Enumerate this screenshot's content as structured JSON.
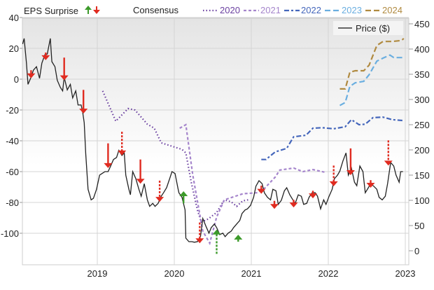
{
  "chart_data": {
    "type": "line",
    "title": "",
    "legend": {
      "eps_label": "EPS Surprise",
      "consensus_label": "Consensus",
      "price_label": "Price ($)",
      "placement": "top"
    },
    "x_axis": {
      "ticks": [
        "2019",
        "2020",
        "2021",
        "2022",
        "2023"
      ],
      "tick_values": [
        2019,
        2020,
        2021,
        2022,
        2023
      ],
      "range": [
        2018.03,
        2023.04
      ]
    },
    "y_left": {
      "ticks": [
        "40",
        "20",
        "0",
        "-20",
        "-40",
        "-60",
        "-80",
        "-100"
      ],
      "tick_values": [
        40,
        20,
        0,
        -20,
        -40,
        -60,
        -80,
        -100
      ]
    },
    "y_right": {
      "ticks": [
        "450",
        "400",
        "350",
        "300",
        "250",
        "200",
        "150",
        "100",
        "50",
        "0"
      ],
      "tick_values": [
        450,
        400,
        350,
        300,
        250,
        200,
        150,
        100,
        50,
        0
      ],
      "range": [
        0,
        450
      ]
    },
    "grid": true,
    "colors": {
      "price": "#222222",
      "beat": "#3c9a2a",
      "miss": "#e02b20",
      "2020": "#6a3fa0",
      "2021": "#a585cc",
      "2022": "#4466bb",
      "2023": "#6aaee0",
      "2024": "#b08a40"
    },
    "price": {
      "name": "Price ($)",
      "x": [
        2018.03,
        2018.05,
        2018.08,
        2018.1,
        2018.14,
        2018.17,
        2018.21,
        2018.25,
        2018.28,
        2018.32,
        2018.35,
        2018.39,
        2018.41,
        2018.45,
        2018.48,
        2018.52,
        2018.55,
        2018.57,
        2018.61,
        2018.65,
        2018.68,
        2018.72,
        2018.75,
        2018.79,
        2018.81,
        2018.83,
        2018.85,
        2018.88,
        2018.92,
        2018.95,
        2018.99,
        2019.03,
        2019.06,
        2019.1,
        2019.14,
        2019.17,
        2019.21,
        2019.25,
        2019.28,
        2019.32,
        2019.35,
        2019.37,
        2019.41,
        2019.43,
        2019.46,
        2019.5,
        2019.54,
        2019.57,
        2019.61,
        2019.65,
        2019.68,
        2019.72,
        2019.75,
        2019.79,
        2019.83,
        2019.86,
        2019.9,
        2019.94,
        2019.97,
        2020.01,
        2020.05,
        2020.06,
        2020.1,
        2020.14,
        2020.15,
        2020.19,
        2020.23,
        2020.26,
        2020.3,
        2020.34,
        2020.37,
        2020.41,
        2020.45,
        2020.48,
        2020.52,
        2020.55,
        2020.59,
        2020.63,
        2020.66,
        2020.7,
        2020.74,
        2020.77,
        2020.81,
        2020.85,
        2020.88,
        2020.92,
        2020.95,
        2020.99,
        2021.03,
        2021.06,
        2021.1,
        2021.14,
        2021.17,
        2021.21,
        2021.25,
        2021.28,
        2021.32,
        2021.35,
        2021.39,
        2021.43,
        2021.46,
        2021.5,
        2021.54,
        2021.57,
        2021.61,
        2021.65,
        2021.68,
        2021.72,
        2021.75,
        2021.79,
        2021.83,
        2021.86,
        2021.9,
        2021.94,
        2021.97,
        2022.01,
        2022.05,
        2022.08,
        2022.12,
        2022.15,
        2022.19,
        2022.23,
        2022.26,
        2022.3,
        2022.34,
        2022.37,
        2022.41,
        2022.45,
        2022.48,
        2022.52,
        2022.55,
        2022.59,
        2022.63,
        2022.66,
        2022.7,
        2022.74,
        2022.77,
        2022.81,
        2022.85,
        2022.88,
        2022.92,
        2022.94,
        2022.97
      ],
      "y": [
        410,
        421,
        372,
        330,
        344,
        358,
        365,
        342,
        372,
        389,
        390,
        421,
        375,
        365,
        338,
        324,
        317,
        344,
        319,
        330,
        303,
        317,
        289,
        289,
        275,
        254,
        192,
        122,
        101,
        104,
        122,
        150,
        153,
        157,
        157,
        167,
        181,
        185,
        199,
        189,
        194,
        150,
        122,
        111,
        157,
        143,
        122,
        108,
        133,
        101,
        88,
        94,
        88,
        94,
        108,
        115,
        125,
        143,
        157,
        153,
        122,
        115,
        106,
        81,
        25,
        18,
        18,
        17,
        18,
        28,
        64,
        49,
        35,
        46,
        53,
        46,
        32,
        35,
        28,
        35,
        39,
        46,
        53,
        60,
        74,
        81,
        83,
        90,
        106,
        128,
        139,
        133,
        115,
        106,
        101,
        122,
        119,
        92,
        100,
        119,
        125,
        111,
        101,
        94,
        111,
        108,
        92,
        94,
        106,
        115,
        115,
        108,
        83,
        101,
        92,
        108,
        122,
        143,
        150,
        158,
        178,
        194,
        150,
        164,
        136,
        129,
        168,
        157,
        115,
        125,
        133,
        128,
        122,
        106,
        101,
        108,
        133,
        175,
        168,
        150,
        136,
        157,
        157
      ]
    },
    "series": [
      {
        "name": "2020",
        "style": "dotted",
        "x": [
          2019.07,
          2019.24,
          2019.4,
          2019.49,
          2019.65,
          2019.74,
          2019.83,
          2020.1,
          2020.15,
          2020.22,
          2020.3,
          2020.35,
          2020.44,
          2020.55,
          2020.65,
          2020.74,
          2020.81,
          2020.89,
          2020.96
        ],
        "y": [
          317,
          257,
          282,
          279,
          251,
          243,
          214,
          201,
          194,
          136,
          81,
          57,
          63,
          76,
          101,
          97,
          88,
          99,
          101
        ]
      },
      {
        "name": "2021",
        "style": "dashed",
        "x": [
          2020.07,
          2020.15,
          2020.24,
          2020.37,
          2020.46,
          2020.55,
          2020.65,
          2020.89,
          2021.07,
          2021.16,
          2021.31,
          2021.37,
          2021.55,
          2021.67,
          2021.8,
          2021.95
        ],
        "y": [
          243,
          250,
          150,
          39,
          15,
          67,
          101,
          113,
          115,
          122,
          146,
          160,
          164,
          157,
          161,
          156
        ]
      },
      {
        "name": "2022",
        "style": "dashdot",
        "x": [
          2021.13,
          2021.19,
          2021.31,
          2021.46,
          2021.55,
          2021.71,
          2021.8,
          2021.92,
          2022.07,
          2022.22,
          2022.3,
          2022.4,
          2022.48,
          2022.58,
          2022.71,
          2022.83,
          2022.98
        ],
        "y": [
          181,
          181,
          196,
          203,
          226,
          229,
          243,
          244,
          242,
          246,
          260,
          250,
          251,
          264,
          265,
          260,
          258
        ]
      },
      {
        "name": "2023",
        "style": "longdash",
        "x": [
          2022.15,
          2022.22,
          2022.28,
          2022.35,
          2022.46,
          2022.53,
          2022.63,
          2022.71,
          2022.8,
          2022.85,
          2022.98
        ],
        "y": [
          288,
          294,
          326,
          333,
          336,
          349,
          376,
          382,
          388,
          383,
          383
        ]
      },
      {
        "name": "2024",
        "style": "longdash",
        "x": [
          2022.15,
          2022.22,
          2022.28,
          2022.35,
          2022.46,
          2022.53,
          2022.63,
          2022.71,
          2022.83,
          2022.95,
          2022.98
        ],
        "y": [
          321,
          321,
          354,
          357,
          357,
          368,
          407,
          415,
          415,
          417,
          421
        ]
      }
    ],
    "eps_surprises": [
      {
        "x": 2018.14,
        "dir": "down",
        "from": 358,
        "to": 342,
        "dotted": false
      },
      {
        "x": 2018.33,
        "dir": "down",
        "from": 393,
        "to": 378,
        "dotted": false
      },
      {
        "x": 2018.57,
        "dir": "down",
        "from": 383,
        "to": 338,
        "dotted": false
      },
      {
        "x": 2018.82,
        "dir": "down",
        "from": 319,
        "to": 272,
        "dotted": false
      },
      {
        "x": 2019.14,
        "dir": "down",
        "from": 213,
        "to": 164,
        "dotted": false
      },
      {
        "x": 2019.32,
        "dir": "down",
        "from": 236,
        "to": 189,
        "dotted": true
      },
      {
        "x": 2019.56,
        "dir": "down",
        "from": 181,
        "to": 133,
        "dotted": false
      },
      {
        "x": 2019.81,
        "dir": "down",
        "from": 139,
        "to": 97,
        "dotted": true
      },
      {
        "x": 2020.12,
        "dir": "up",
        "from": 94,
        "to": 118,
        "dotted": false
      },
      {
        "x": 2020.33,
        "dir": "down",
        "from": 56,
        "to": 15,
        "dotted": true
      },
      {
        "x": 2020.55,
        "dir": "up",
        "from": -6,
        "to": 42,
        "dotted": true
      },
      {
        "x": 2020.83,
        "dir": "up",
        "from": 18,
        "to": 32,
        "dotted": false
      },
      {
        "x": 2021.13,
        "dir": "down",
        "from": 129,
        "to": 113,
        "dotted": false
      },
      {
        "x": 2021.3,
        "dir": "down",
        "from": 99,
        "to": 83,
        "dotted": false
      },
      {
        "x": 2021.55,
        "dir": "down",
        "from": 101,
        "to": 86,
        "dotted": false
      },
      {
        "x": 2021.8,
        "dir": "down",
        "from": 119,
        "to": 104,
        "dotted": false
      },
      {
        "x": 2022.07,
        "dir": "down",
        "from": 169,
        "to": 128,
        "dotted": true
      },
      {
        "x": 2022.29,
        "dir": "down",
        "from": 203,
        "to": 150,
        "dotted": false
      },
      {
        "x": 2022.55,
        "dir": "down",
        "from": 140,
        "to": 125,
        "dotted": false
      },
      {
        "x": 2022.78,
        "dir": "down",
        "from": 219,
        "to": 169,
        "dotted": true
      }
    ]
  }
}
